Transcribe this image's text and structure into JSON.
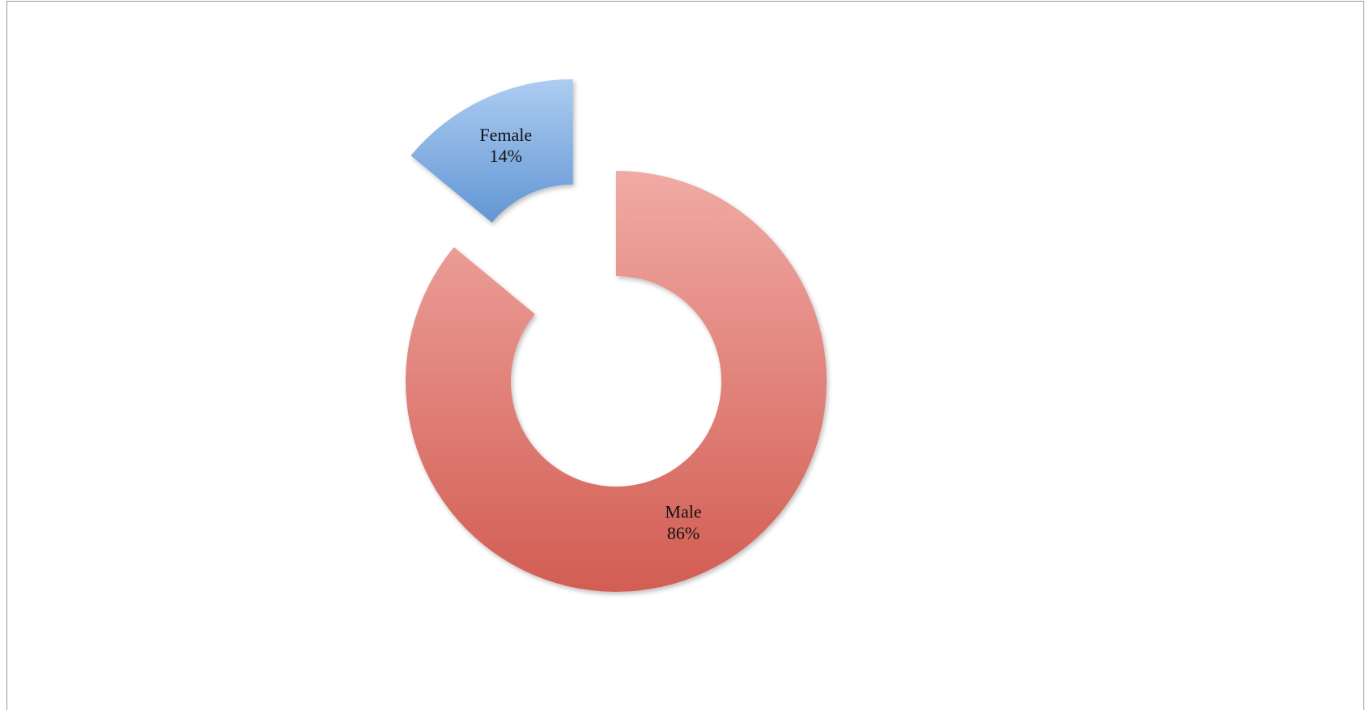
{
  "chart_data": {
    "type": "donut",
    "categories": [
      "Male",
      "Female"
    ],
    "values": [
      86,
      14
    ],
    "value_labels": [
      "86%",
      "14%"
    ],
    "colors": [
      "#e4655a",
      "#6aa3e6"
    ],
    "explode": [
      false,
      true
    ]
  }
}
